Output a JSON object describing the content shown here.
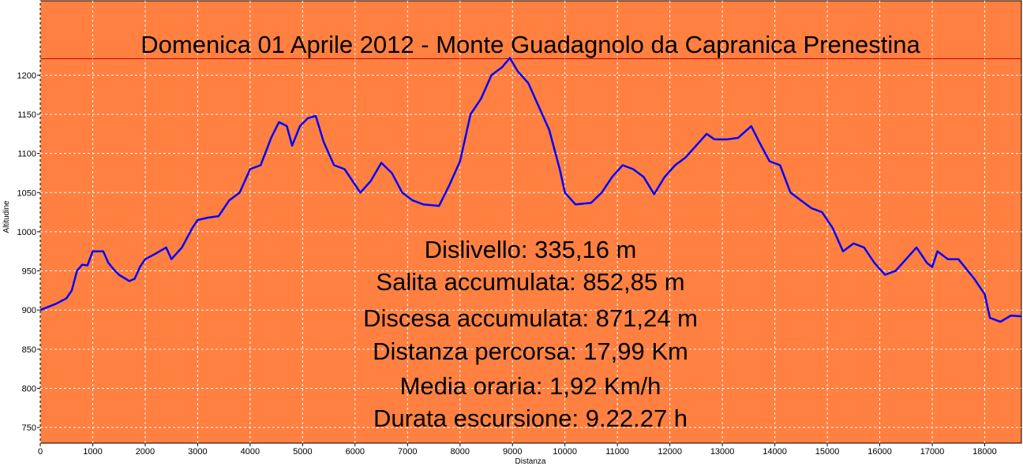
{
  "chart_data": {
    "type": "line",
    "title": "Domenica 01 Aprile 2012 - Monte Guadagnolo da Capranica Prenestina",
    "x_label": "Distanza",
    "y_label": "Altitudine",
    "annotations": [
      "Dislivello: 335,16 m",
      "Salita accumulata: 852,85 m",
      "Discesa accumulata: 871,24 m",
      "Distanza percorsa: 17,99 Km",
      "Media oraria: 1,92 Km/h",
      "Durata escursione: 9.22.27 h"
    ],
    "max_line": 1221,
    "max_line_color": "#cc0000",
    "background": "#ff8040",
    "grid": true,
    "xlim": [
      0,
      18700
    ],
    "ylim": [
      730,
      1295
    ],
    "xticks": [
      0,
      1000,
      2000,
      3000,
      4000,
      5000,
      6000,
      7000,
      8000,
      9000,
      10000,
      11000,
      12000,
      13000,
      14000,
      15000,
      16000,
      17000,
      18000
    ],
    "yticks": [
      750,
      800,
      850,
      900,
      950,
      1000,
      1050,
      1100,
      1150,
      1200
    ],
    "series": [
      {
        "name": "Altitudine",
        "color": "#0000ff",
        "x": [
          0,
          300,
          500,
          600,
          700,
          800,
          900,
          1000,
          1100,
          1200,
          1300,
          1400,
          1500,
          1700,
          1800,
          1900,
          2000,
          2200,
          2400,
          2500,
          2700,
          2900,
          3000,
          3200,
          3400,
          3600,
          3800,
          4000,
          4200,
          4400,
          4550,
          4700,
          4800,
          4950,
          5100,
          5250,
          5400,
          5600,
          5800,
          6000,
          6100,
          6300,
          6500,
          6700,
          6900,
          7100,
          7300,
          7600,
          7800,
          8000,
          8200,
          8400,
          8600,
          8800,
          8950,
          9100,
          9300,
          9500,
          9700,
          9900,
          10000,
          10200,
          10500,
          10700,
          10900,
          11100,
          11300,
          11500,
          11700,
          11900,
          12100,
          12300,
          12500,
          12700,
          12850,
          13100,
          13300,
          13550,
          13700,
          13900,
          14100,
          14300,
          14500,
          14700,
          14900,
          15100,
          15300,
          15500,
          15700,
          15900,
          16100,
          16300,
          16500,
          16700,
          16900,
          17000,
          17100,
          17300,
          17500,
          17800,
          18000,
          18100,
          18300,
          18500,
          18700
        ],
        "values": [
          900,
          908,
          915,
          925,
          950,
          958,
          957,
          975,
          975,
          975,
          960,
          952,
          945,
          937,
          940,
          955,
          965,
          972,
          980,
          965,
          980,
          1005,
          1015,
          1018,
          1020,
          1040,
          1050,
          1080,
          1085,
          1120,
          1140,
          1135,
          1110,
          1135,
          1145,
          1148,
          1115,
          1085,
          1080,
          1060,
          1050,
          1065,
          1088,
          1075,
          1050,
          1040,
          1035,
          1033,
          1060,
          1090,
          1150,
          1170,
          1200,
          1210,
          1222,
          1205,
          1190,
          1160,
          1130,
          1080,
          1050,
          1035,
          1037,
          1050,
          1070,
          1085,
          1080,
          1070,
          1048,
          1070,
          1085,
          1095,
          1110,
          1125,
          1118,
          1118,
          1120,
          1135,
          1115,
          1090,
          1085,
          1050,
          1040,
          1030,
          1025,
          1005,
          975,
          985,
          980,
          960,
          945,
          950,
          965,
          980,
          960,
          955,
          975,
          965,
          965,
          940,
          920,
          890,
          885,
          893,
          892
        ]
      }
    ]
  }
}
